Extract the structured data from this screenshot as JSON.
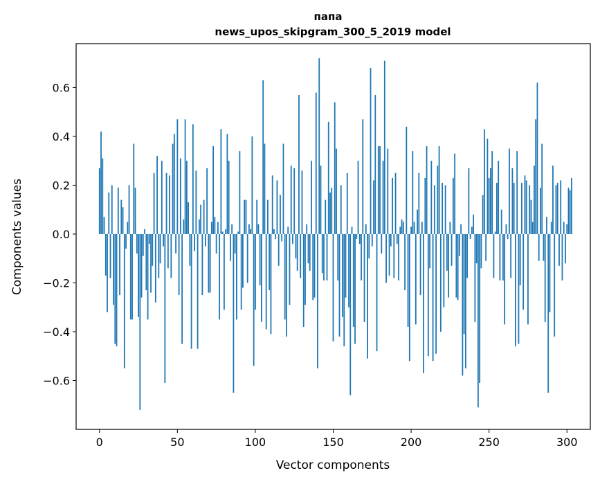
{
  "chart_data": {
    "type": "bar",
    "title": "папа",
    "subtitle": "news_upos_skipgram_300_5_2019 model",
    "xlabel": "Vector components",
    "ylabel": "Components values",
    "xlim": [
      -15,
      315
    ],
    "ylim": [
      -0.8,
      0.78
    ],
    "xticks": [
      0,
      50,
      100,
      150,
      200,
      250,
      300
    ],
    "xtick_labels": [
      "0",
      "50",
      "100",
      "150",
      "200",
      "250",
      "300"
    ],
    "yticks": [
      -0.6,
      -0.4,
      -0.2,
      0.0,
      0.2,
      0.4,
      0.6
    ],
    "ytick_labels": [
      "−0.6",
      "−0.4",
      "−0.2",
      "0.0",
      "0.2",
      "0.4",
      "0.6"
    ],
    "bar_color": "#1f77b4",
    "grid": false,
    "legend": "none",
    "x_start": 0,
    "values": [
      0.27,
      0.42,
      0.31,
      0.07,
      -0.17,
      -0.32,
      0.17,
      -0.18,
      0.2,
      -0.29,
      -0.45,
      -0.46,
      0.19,
      -0.25,
      0.14,
      0.11,
      -0.55,
      -0.06,
      0.05,
      0.2,
      -0.35,
      -0.35,
      0.37,
      0.19,
      -0.08,
      -0.34,
      -0.72,
      -0.26,
      -0.09,
      0.02,
      -0.23,
      -0.35,
      -0.04,
      -0.24,
      -0.13,
      0.25,
      -0.28,
      0.32,
      -0.18,
      -0.12,
      0.3,
      -0.05,
      -0.61,
      0.25,
      -0.14,
      0.24,
      -0.18,
      0.37,
      0.41,
      -0.08,
      0.47,
      -0.25,
      0.31,
      -0.45,
      0.06,
      0.47,
      0.3,
      0.13,
      -0.13,
      -0.47,
      0.45,
      -0.07,
      0.26,
      -0.47,
      0.06,
      0.12,
      -0.25,
      0.14,
      -0.05,
      0.27,
      -0.24,
      -0.24,
      0.05,
      0.36,
      0.07,
      -0.08,
      0.05,
      -0.35,
      0.43,
      0.01,
      -0.31,
      0.02,
      0.41,
      0.3,
      -0.11,
      0.04,
      -0.65,
      -0.08,
      -0.35,
      0.01,
      0.34,
      -0.31,
      -0.22,
      0.14,
      0.14,
      -0.2,
      0.04,
      0.02,
      0.4,
      -0.54,
      -0.31,
      0.14,
      0.04,
      -0.21,
      -0.36,
      0.63,
      0.37,
      -0.39,
      0.14,
      -0.23,
      -0.41,
      0.24,
      0.02,
      -0.02,
      0.22,
      -0.13,
      0.16,
      -0.03,
      0.37,
      -0.35,
      -0.42,
      0.03,
      -0.29,
      0.28,
      -0.04,
      0.27,
      -0.1,
      -0.15,
      0.57,
      -0.18,
      0.26,
      -0.38,
      -0.29,
      0.04,
      -0.12,
      -0.15,
      0.3,
      -0.27,
      -0.26,
      0.58,
      -0.55,
      0.72,
      0.28,
      -0.16,
      -0.19,
      0.14,
      -0.19,
      0.46,
      0.17,
      0.19,
      -0.44,
      0.54,
      0.35,
      -0.19,
      -0.42,
      0.2,
      -0.34,
      -0.46,
      -0.26,
      0.25,
      -0.3,
      -0.66,
      0.03,
      -0.38,
      -0.45,
      -0.02,
      0.3,
      -0.04,
      -0.19,
      0.47,
      -0.36,
      0.04,
      -0.51,
      -0.1,
      0.68,
      -0.05,
      0.22,
      0.57,
      -0.48,
      0.36,
      0.36,
      -0.08,
      0.3,
      0.71,
      -0.2,
      0.35,
      -0.17,
      -0.05,
      0.23,
      -0.18,
      0.25,
      -0.04,
      -0.19,
      0.03,
      0.06,
      0.05,
      -0.23,
      0.44,
      -0.38,
      -0.52,
      0.03,
      0.34,
      0.05,
      -0.37,
      0.1,
      0.25,
      -0.25,
      0.05,
      -0.57,
      0.23,
      0.36,
      -0.5,
      -0.14,
      0.3,
      -0.52,
      0.2,
      -0.49,
      0.28,
      0.36,
      -0.4,
      0.21,
      -0.3,
      0.2,
      -0.15,
      -0.26,
      0.05,
      -0.13,
      0.23,
      0.33,
      -0.26,
      -0.27,
      -0.09,
      0.04,
      -0.58,
      -0.41,
      -0.55,
      -0.18,
      0.27,
      -0.02,
      0.03,
      0.08,
      -0.36,
      -0.12,
      -0.71,
      -0.61,
      -0.14,
      0.16,
      0.43,
      -0.11,
      0.39,
      0.23,
      0.27,
      0.34,
      -0.18,
      0.01,
      0.21,
      0.3,
      -0.19,
      0.1,
      -0.19,
      -0.37,
      0.04,
      -0.02,
      0.35,
      -0.18,
      0.27,
      0.21,
      -0.46,
      0.34,
      -0.45,
      -0.21,
      0.21,
      -0.31,
      0.24,
      0.22,
      -0.37,
      0.2,
      0.14,
      0.05,
      0.28,
      0.47,
      0.62,
      -0.11,
      0.19,
      0.37,
      -0.11,
      -0.36,
      0.07,
      -0.65,
      -0.32,
      0.05,
      0.28,
      -0.42,
      0.2,
      0.21,
      -0.13,
      0.22,
      -0.19,
      0.05,
      -0.12,
      0.04,
      0.19,
      0.18,
      0.23
    ]
  }
}
